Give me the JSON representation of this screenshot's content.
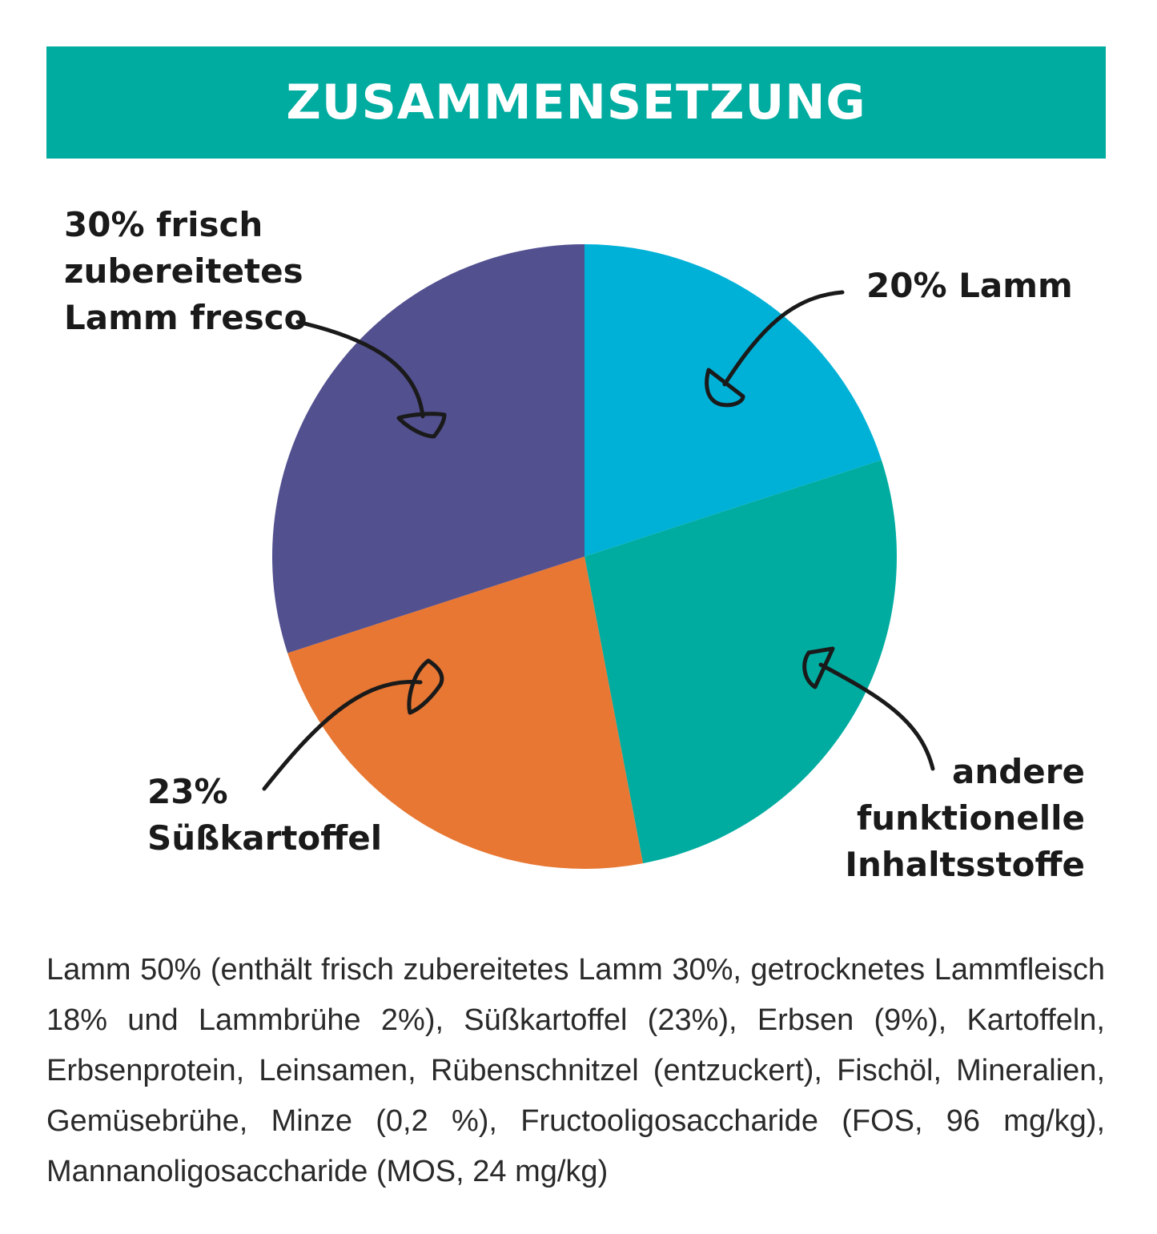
{
  "header": {
    "title": "ZUSAMMENSETZUNG",
    "color": "#00ab9f"
  },
  "chart_data": {
    "type": "pie",
    "start": "top",
    "direction": "clockwise",
    "slices": [
      {
        "label": "20% Lamm",
        "value": 20,
        "color": "#00b1d7"
      },
      {
        "label": "andere\nfunktionelle\nInhaltsstoffe",
        "value": 27,
        "color": "#00aca0"
      },
      {
        "label": "23%\nSüßkartoffel",
        "value": 23,
        "color": "#e77733"
      },
      {
        "label": "30% frisch\nzubereitetes\nLamm fresco",
        "value": 30,
        "color": "#52508f"
      }
    ]
  },
  "description": "Lamm 50% (enthält frisch zubereitetes Lamm 30%, getrocknetes Lammfleisch 18% und Lammbrühe 2%), Süßkartoffel (23%), Erbsen (9%), Kartoffeln, Erbsenprotein, Leinsamen, Rübenschnitzel (entzuckert), Fischöl, Mineralien, Gemüsebrühe, Minze (0,2 %), Fructooligosaccharide (FOS, 96 mg/kg), Mannanoligosaccharide (MOS, 24 mg/kg)"
}
